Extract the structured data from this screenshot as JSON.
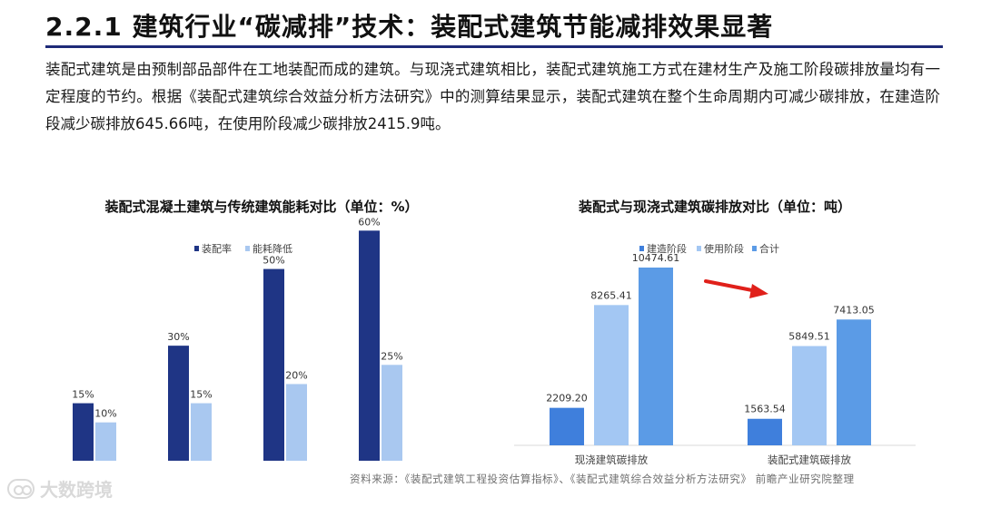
{
  "header": {
    "title": "2.2.1 建筑行业“碳减排”技术：装配式建筑节能减排效果显著"
  },
  "paragraph": "装配式建筑是由预制部品部件在工地装配而成的建筑。与现浇式建筑相比，装配式建筑施工方式在建材生产及施工阶段碳排放量均有一定程度的节约。根据《装配式建筑综合效益分析方法研究》中的测算结果显示，装配式建筑在整个生命周期内可减少碳排放，在建造阶段减少碳排放645.66吨，在使用阶段减少碳排放2415.9吨。",
  "colors": {
    "title_rule": "#1e2a78",
    "assembly_rate": "#1f3585",
    "energy_reduction": "#a9c8f0",
    "construction_phase": "#3f7fdc",
    "use_phase": "#a3c7f3",
    "total": "#5b9be6",
    "arrow": "#e0201a"
  },
  "chart_data": [
    {
      "type": "bar",
      "title": "装配式混凝土建筑与传统建筑能耗对比（单位：%）",
      "categories": [
        "",
        "",
        "",
        ""
      ],
      "series": [
        {
          "name": "装配率",
          "values": [
            15,
            30,
            50,
            60
          ],
          "labels": [
            "15%",
            "30%",
            "50%",
            "60%"
          ]
        },
        {
          "name": "能耗降低",
          "values": [
            10,
            15,
            20,
            25
          ],
          "labels": [
            "10%",
            "15%",
            "20%",
            "25%"
          ]
        }
      ],
      "legend": "top-center",
      "grid": false,
      "ylim": [
        0,
        70
      ]
    },
    {
      "type": "bar",
      "title": "装配式与现浇式建筑碳排放对比（单位：吨）",
      "categories": [
        "现浇建筑碳排放",
        "装配式建筑碳排放"
      ],
      "series": [
        {
          "name": "建造阶段",
          "values": [
            2209.2,
            1563.54
          ],
          "labels": [
            "2209.20",
            "1563.54"
          ]
        },
        {
          "name": "使用阶段",
          "values": [
            8265.41,
            5849.51
          ],
          "labels": [
            "8265.41",
            "5849.51"
          ]
        },
        {
          "name": "合计",
          "values": [
            10474.61,
            7413.05
          ],
          "labels": [
            "10474.61",
            "7413.05"
          ]
        }
      ],
      "legend": "top-center",
      "grid": false,
      "ylim": [
        0,
        12000
      ],
      "annotation": "red-arrow"
    }
  ],
  "source": "资料来源：《装配式建筑工程投资估算指标》、《装配式建筑综合效益分析方法研究》 前瞻产业研究院整理",
  "watermark": "大数跨境"
}
